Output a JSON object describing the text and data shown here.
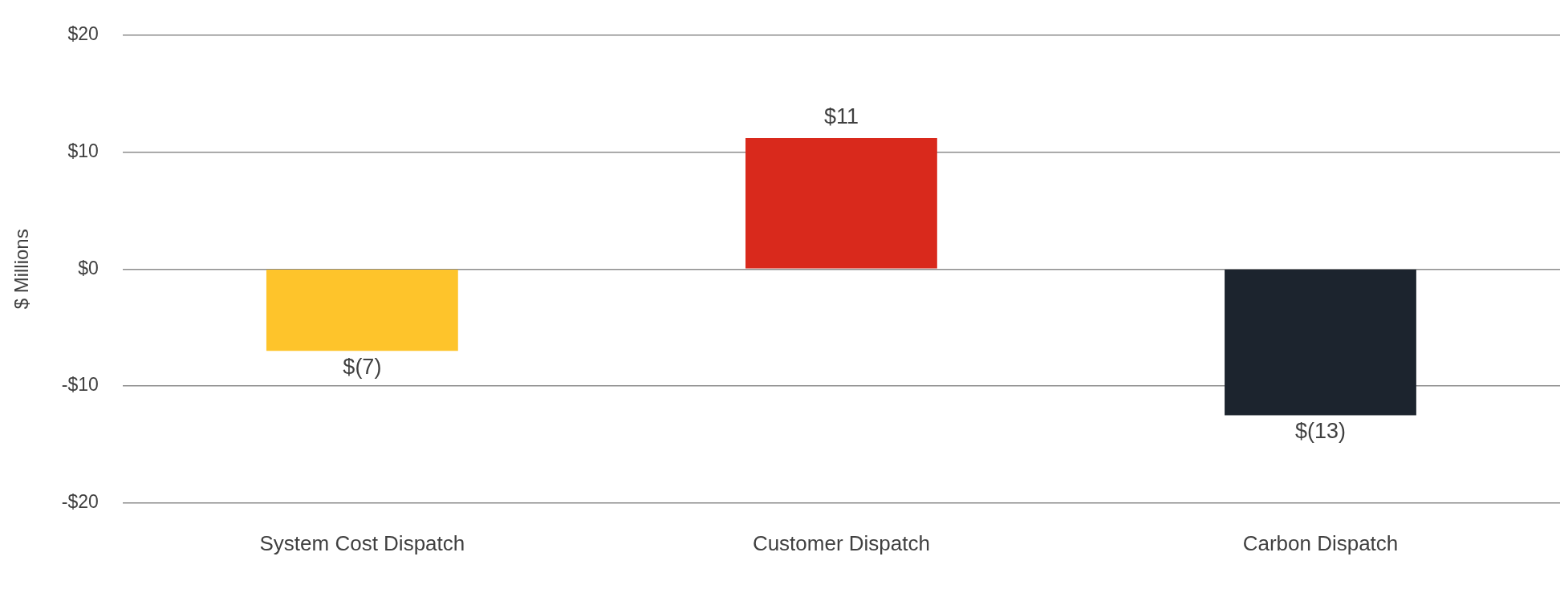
{
  "chart_data": {
    "type": "bar",
    "ylabel": "$ Millions",
    "categories": [
      "System Cost Dispatch",
      "Customer Dispatch",
      "Carbon Dispatch"
    ],
    "values": [
      -7,
      11.2,
      -12.5
    ],
    "colors": [
      "#fec42b",
      "#d9291c",
      "#1c242e"
    ],
    "value_labels": [
      "$(7)",
      "$11",
      "$(13)"
    ],
    "ylim": [
      -20,
      20
    ],
    "yticks": [
      {
        "value": -20,
        "label": "-$20"
      },
      {
        "value": -10,
        "label": "-$10"
      },
      {
        "value": 0,
        "label": "$0"
      },
      {
        "value": 10,
        "label": "$10"
      },
      {
        "value": 20,
        "label": "$20"
      }
    ],
    "grid": "y",
    "legend": false
  }
}
